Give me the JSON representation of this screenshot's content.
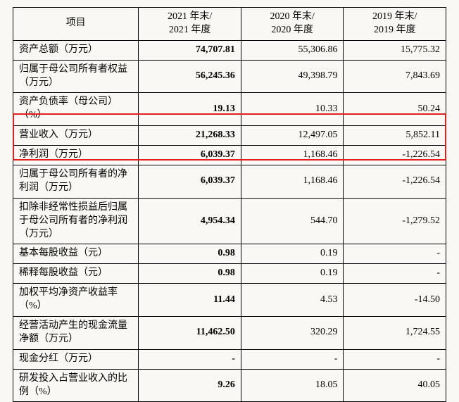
{
  "header": {
    "item": "项目",
    "y2021_l1": "2021 年末/",
    "y2021_l2": "2021 年度",
    "y2020_l1": "2020 年末/",
    "y2020_l2": "2020 年度",
    "y2019_l1": "2019 年末/",
    "y2019_l2": "2019 年度"
  },
  "rows": [
    {
      "label": "资产总额（万元）",
      "v2021": "74,707.81",
      "v2020": "55,306.86",
      "v2019": "15,775.32"
    },
    {
      "label": "归属于母公司所有者权益（万元）",
      "v2021": "56,245.36",
      "v2020": "49,398.79",
      "v2019": "7,843.69"
    },
    {
      "label": "资产负债率（母公司）（%）",
      "v2021": "19.13",
      "v2020": "10.33",
      "v2019": "50.24"
    },
    {
      "label": "营业收入（万元）",
      "v2021": "21,268.33",
      "v2020": "12,497.05",
      "v2019": "5,852.11"
    },
    {
      "label": "净利润（万元）",
      "v2021": "6,039.37",
      "v2020": "1,168.46",
      "v2019": "-1,226.54"
    },
    {
      "label": "归属于母公司所有者的净利润（万元）",
      "v2021": "6,039.37",
      "v2020": "1,168.46",
      "v2019": "-1,226.54"
    },
    {
      "label": "扣除非经常性损益后归属于母公司所有者的净利润（万元）",
      "v2021": "4,954.34",
      "v2020": "544.70",
      "v2019": "-1,279.52"
    },
    {
      "label": "基本每股收益（元）",
      "v2021": "0.98",
      "v2020": "0.19",
      "v2019": "-"
    },
    {
      "label": "稀释每股收益（元）",
      "v2021": "0.98",
      "v2020": "0.19",
      "v2019": "-"
    },
    {
      "label": "加权平均净资产收益率（%）",
      "v2021": "11.44",
      "v2020": "4.53",
      "v2019": "-14.50"
    },
    {
      "label": "经营活动产生的现金流量净额（万元）",
      "v2021": "11,462.50",
      "v2020": "320.29",
      "v2019": "1,724.55"
    },
    {
      "label": "现金分红（万元）",
      "v2021": "-",
      "v2020": "-",
      "v2019": "-"
    },
    {
      "label": "研发投入占营业收入的比例（%）",
      "v2021": "9.26",
      "v2020": "18.05",
      "v2019": "40.05"
    }
  ],
  "style": {
    "highlight_color": "#e2201e",
    "background_color": "#f9f8f5",
    "border_color": "#000000",
    "font_family_serif": "SimSun"
  }
}
